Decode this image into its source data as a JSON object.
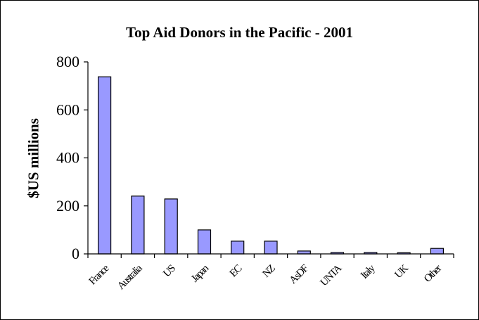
{
  "chart_data": {
    "type": "bar",
    "title": "Top Aid Donors in the Pacific - 2001",
    "xlabel": "",
    "ylabel": "$US millions",
    "categories": [
      "France",
      "Australia",
      "US",
      "Japan",
      "EC",
      "NZ",
      "AsDF",
      "UNTA",
      "Italy",
      "UK",
      "Other"
    ],
    "values": [
      738,
      241,
      229,
      100,
      53,
      53,
      12,
      6,
      6,
      5,
      23
    ],
    "ylim": [
      0,
      800
    ],
    "yticks": [
      "0",
      "200",
      "400",
      "600",
      "800"
    ],
    "grid": false,
    "legend": "none",
    "bar_color": "#9999ff",
    "bar_stroke": "#000000"
  }
}
